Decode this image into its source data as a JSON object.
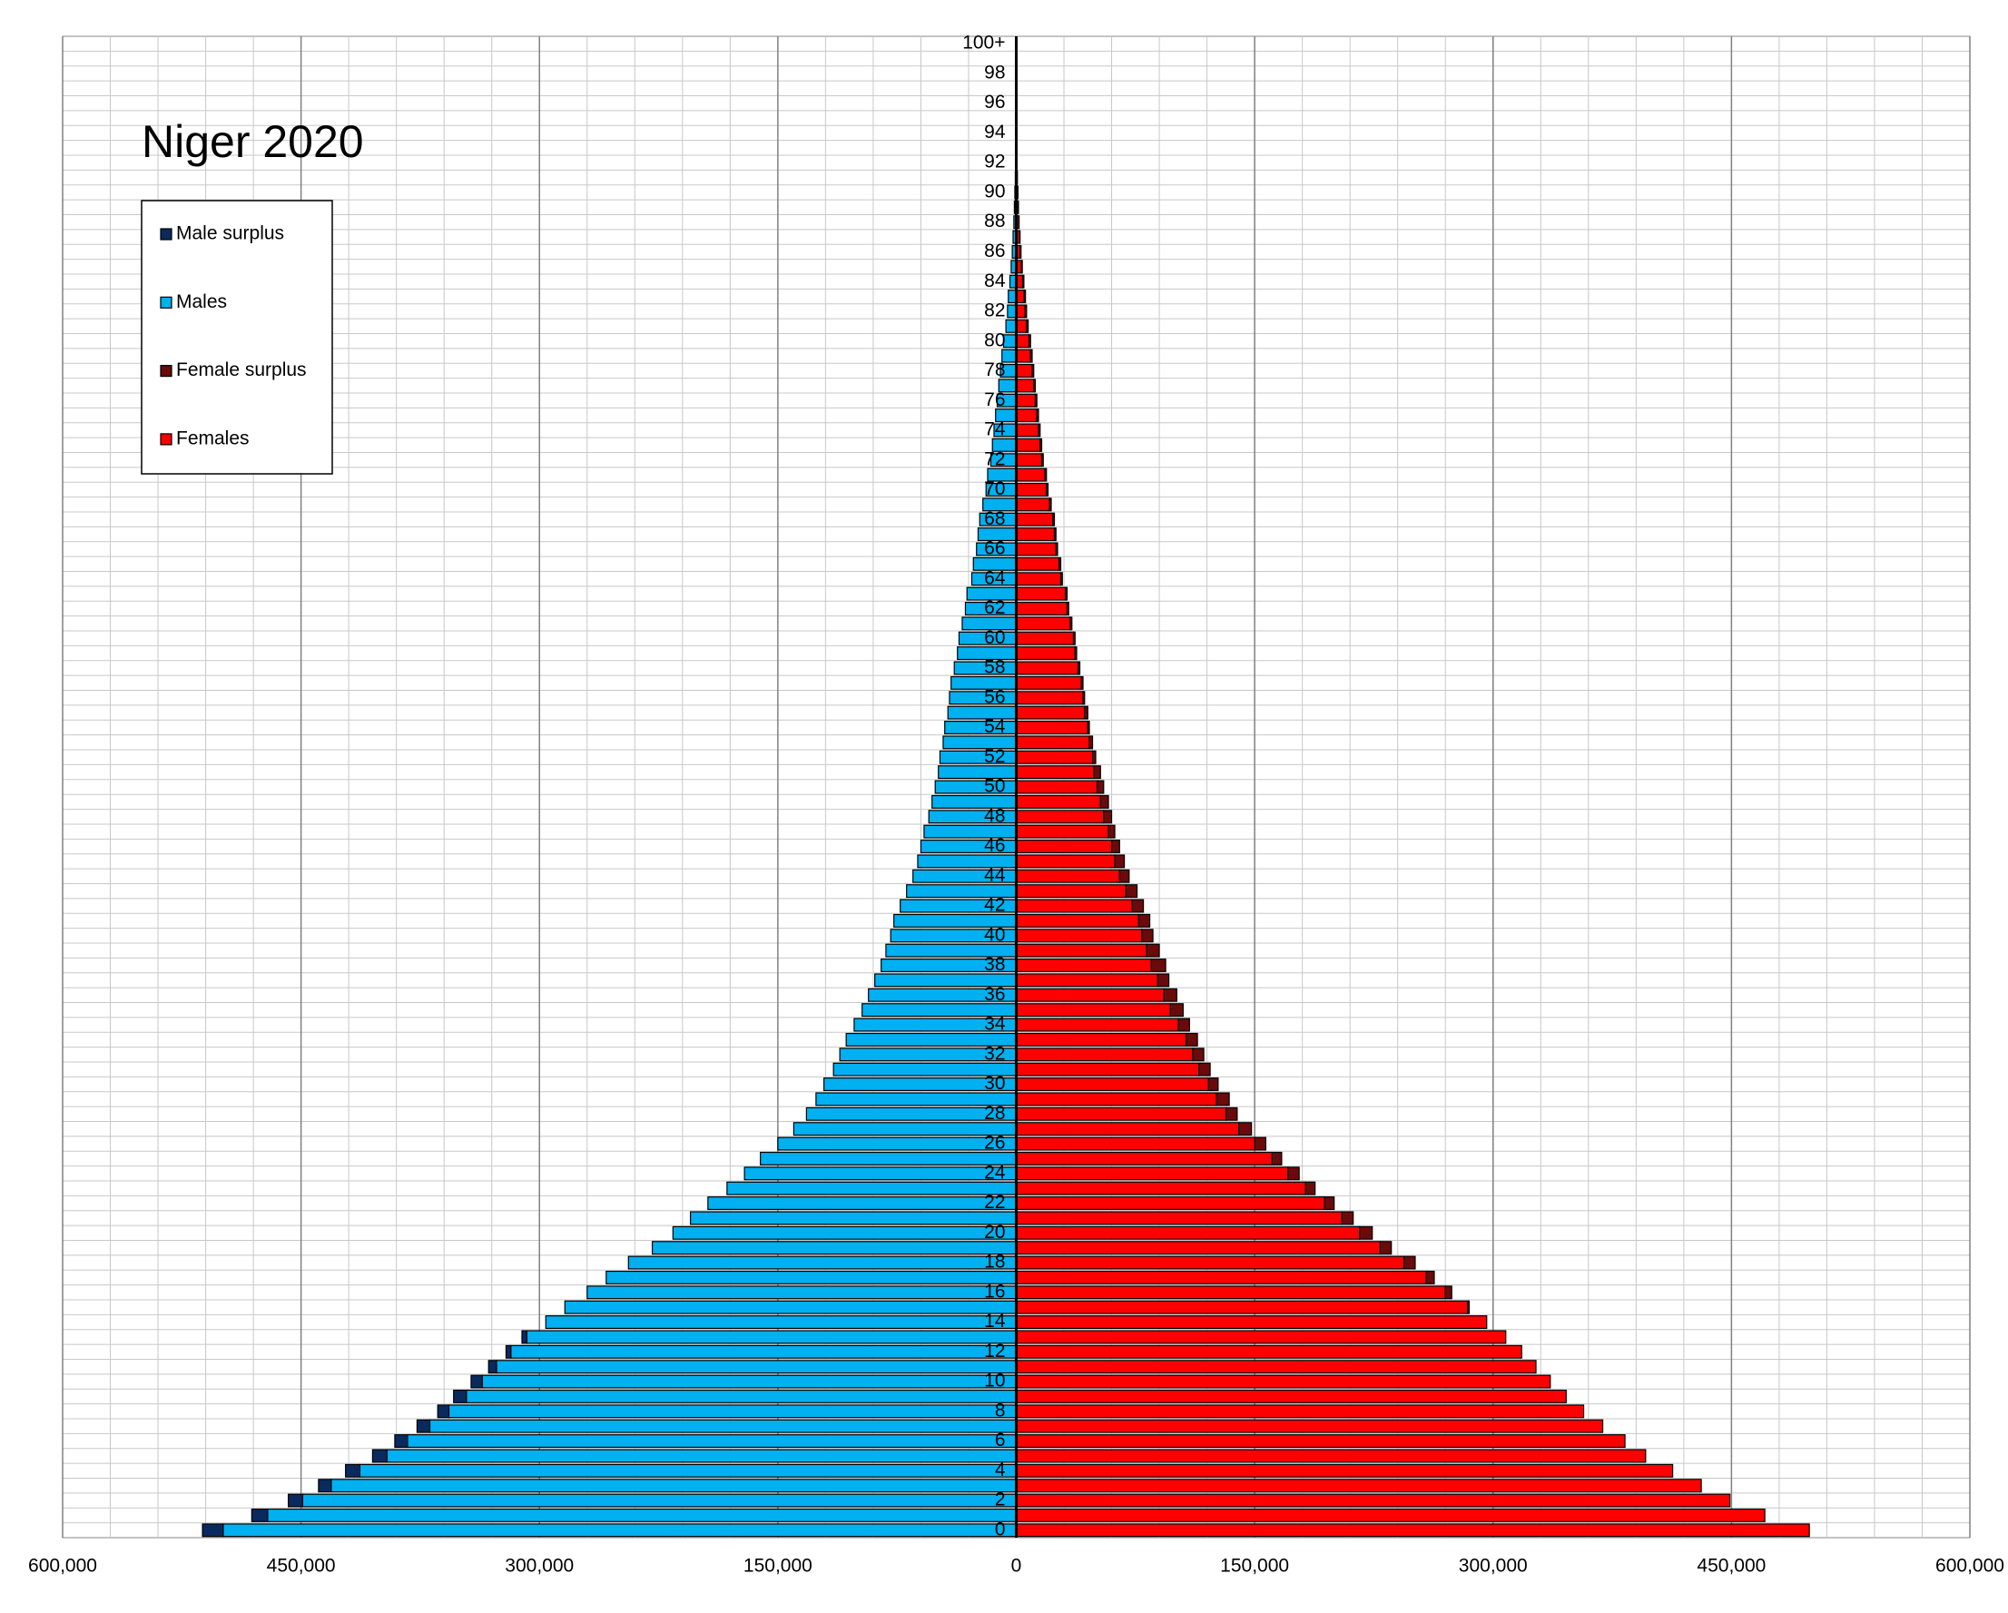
{
  "chart_data": {
    "type": "pyramid",
    "title": "Niger 2020",
    "categories": [
      "0",
      null,
      "2",
      null,
      "4",
      null,
      "6",
      null,
      "8",
      null,
      "10",
      null,
      "12",
      null,
      "14",
      null,
      "16",
      null,
      "18",
      null,
      "20",
      null,
      "22",
      null,
      "24",
      null,
      "26",
      null,
      "28",
      null,
      "30",
      null,
      "32",
      null,
      "34",
      null,
      "36",
      null,
      "38",
      null,
      "40",
      null,
      "42",
      null,
      "44",
      null,
      "46",
      null,
      "48",
      null,
      "50",
      null,
      "52",
      null,
      "54",
      null,
      "56",
      null,
      "58",
      null,
      "60",
      null,
      "62",
      null,
      "64",
      null,
      "66",
      null,
      "68",
      null,
      "70",
      null,
      "72",
      null,
      "74",
      null,
      "76",
      null,
      "78",
      null,
      "80",
      null,
      "82",
      null,
      "84",
      null,
      "86",
      null,
      "88",
      null,
      "90",
      null,
      "92",
      null,
      "94",
      null,
      "96",
      null,
      "98",
      null,
      "100+"
    ],
    "series": [
      {
        "name": "Male surplus",
        "color": "#0a2a5e",
        "side": "left",
        "values": [
          13000,
          10000,
          9000,
          8000,
          9000,
          9000,
          8000,
          8000,
          7000,
          8000,
          7000,
          5000,
          3000,
          3000,
          0,
          0,
          0,
          0,
          0,
          0,
          0,
          0,
          0,
          0,
          0,
          0,
          0,
          0,
          0,
          0,
          0,
          0,
          0,
          0,
          0,
          0,
          0,
          0,
          0,
          0,
          0,
          0,
          0,
          0,
          0,
          0,
          0,
          0,
          0,
          0,
          0,
          0,
          0,
          0,
          0,
          0,
          0,
          0,
          0,
          0,
          0,
          0,
          0,
          0,
          0,
          0,
          0,
          0,
          0,
          0,
          0,
          0,
          0,
          0,
          0,
          0,
          0,
          0,
          0,
          0,
          0,
          0,
          0,
          0,
          0,
          0,
          0,
          0,
          0,
          0,
          0,
          0,
          0,
          0,
          0,
          0,
          0,
          0,
          0,
          0,
          0
        ]
      },
      {
        "name": "Males",
        "color": "#00b0f0",
        "side": "left",
        "values": [
          499000,
          471000,
          449000,
          431000,
          413000,
          396000,
          383000,
          369000,
          357000,
          346000,
          336000,
          327000,
          318000,
          308000,
          296000,
          284000,
          270000,
          258000,
          244000,
          229000,
          216000,
          205000,
          194000,
          182000,
          171000,
          161000,
          150000,
          140000,
          132000,
          126000,
          121000,
          115000,
          111000,
          107000,
          102000,
          97000,
          93000,
          89000,
          85000,
          82000,
          79000,
          77000,
          73000,
          69000,
          65000,
          62000,
          60000,
          58000,
          55000,
          53000,
          51000,
          49000,
          48000,
          46000,
          45000,
          43000,
          42000,
          41000,
          39000,
          37000,
          36000,
          34000,
          32000,
          31000,
          28000,
          27000,
          25000,
          24000,
          23000,
          21000,
          19000,
          18000,
          16000,
          15000,
          14000,
          13000,
          12000,
          11000,
          10000,
          9000,
          8000,
          6500,
          5500,
          5000,
          4000,
          3200,
          2500,
          2000,
          1500,
          1200,
          900,
          600,
          400,
          300,
          200,
          150,
          100,
          70,
          50,
          30,
          50
        ]
      },
      {
        "name": "Female surplus",
        "color": "#6b0a0a",
        "side": "right",
        "values": [
          0,
          0,
          0,
          0,
          0,
          0,
          0,
          0,
          0,
          0,
          0,
          0,
          0,
          0,
          0,
          1000,
          4000,
          5000,
          7000,
          7000,
          8000,
          7000,
          6000,
          6000,
          7000,
          6000,
          7000,
          8000,
          7000,
          8000,
          6000,
          7000,
          7000,
          7000,
          7000,
          8000,
          8000,
          7000,
          9000,
          8000,
          7000,
          7000,
          7000,
          7000,
          6000,
          6000,
          5000,
          4000,
          5000,
          5000,
          4000,
          4000,
          2000,
          2000,
          1000,
          2000,
          1000,
          1000,
          1000,
          1000,
          1000,
          1000,
          1000,
          1000,
          1000,
          1000,
          1000,
          1000,
          1000,
          1000,
          1000,
          1000,
          1000,
          1000,
          1000,
          1000,
          1000,
          1000,
          1000,
          1000,
          1000,
          1000,
          1000,
          800,
          800,
          600,
          500,
          400,
          300,
          200,
          200,
          100,
          100,
          50,
          50,
          30,
          20,
          20,
          10,
          10,
          10
        ]
      },
      {
        "name": "Females",
        "color": "#ff0000",
        "side": "right",
        "values": [
          499000,
          471000,
          449000,
          431000,
          413000,
          396000,
          383000,
          369000,
          357000,
          346000,
          336000,
          327000,
          318000,
          308000,
          296000,
          284000,
          270000,
          258000,
          244000,
          229000,
          216000,
          205000,
          194000,
          182000,
          171000,
          161000,
          150000,
          140000,
          132000,
          126000,
          121000,
          115000,
          111000,
          107000,
          102000,
          97000,
          93000,
          89000,
          85000,
          82000,
          79000,
          77000,
          73000,
          69000,
          65000,
          62000,
          60000,
          58000,
          55000,
          53000,
          51000,
          49000,
          48000,
          46000,
          45000,
          43000,
          42000,
          41000,
          39000,
          37000,
          36000,
          34000,
          32000,
          31000,
          28000,
          27000,
          25000,
          24000,
          23000,
          21000,
          19000,
          18000,
          16000,
          15000,
          14000,
          13000,
          12000,
          11000,
          10000,
          9000,
          8000,
          6500,
          5500,
          5000,
          4000,
          3200,
          2500,
          2000,
          1500,
          1200,
          900,
          600,
          400,
          300,
          200,
          150,
          100,
          70,
          50,
          30,
          50
        ]
      }
    ],
    "xlim": [
      -600000,
      600000
    ],
    "xticks": [
      {
        "value": -600000,
        "label": "600,000"
      },
      {
        "value": -450000,
        "label": "450,000"
      },
      {
        "value": -300000,
        "label": "300,000"
      },
      {
        "value": -150000,
        "label": "150,000"
      },
      0,
      {
        "value": 150000,
        "label": "150,000"
      },
      {
        "value": 300000,
        "label": "300,000"
      },
      {
        "value": 450000,
        "label": "450,000"
      },
      {
        "value": 600000,
        "label": "600,000"
      }
    ],
    "xminorticks": [
      -570000,
      -540000,
      -510000,
      -480000,
      -420000,
      -390000,
      -360000,
      -330000,
      -270000,
      -240000,
      -210000,
      -180000,
      -120000,
      -90000,
      -60000,
      -30000,
      30000,
      60000,
      90000,
      120000,
      180000,
      210000,
      240000,
      270000,
      330000,
      360000,
      390000,
      420000,
      480000,
      510000,
      540000,
      570000
    ],
    "grid": true,
    "legend": "upper left"
  }
}
